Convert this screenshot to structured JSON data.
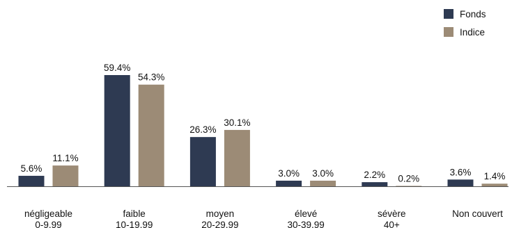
{
  "chart_data": {
    "type": "bar",
    "categories": [
      [
        "négligeable",
        "0-9,99"
      ],
      [
        "faible",
        "10-19,99"
      ],
      [
        "moyen",
        "20-29,99"
      ],
      [
        "élevé",
        "30-39,99"
      ],
      [
        "sévère",
        "40+"
      ],
      [
        "Non couvert"
      ]
    ],
    "series": [
      {
        "name": "Fonds",
        "color": "#2e3a52",
        "values": [
          5.6,
          59.4,
          26.3,
          3.0,
          2.2,
          3.6
        ],
        "labels": [
          "5.6%",
          "59.4%",
          "26.3%",
          "3.0%",
          "2.2%",
          "3.6%"
        ]
      },
      {
        "name": "Indice",
        "color": "#9c8b76",
        "values": [
          11.1,
          54.3,
          30.1,
          3.0,
          0.2,
          1.4
        ],
        "labels": [
          "11.1%",
          "54.3%",
          "30.1%",
          "3.0%",
          "0.2%",
          "1.4%"
        ]
      }
    ],
    "ylim": [
      0,
      59.4
    ],
    "grid": false,
    "legend_position": "top-right",
    "axis_color": "#555555"
  }
}
